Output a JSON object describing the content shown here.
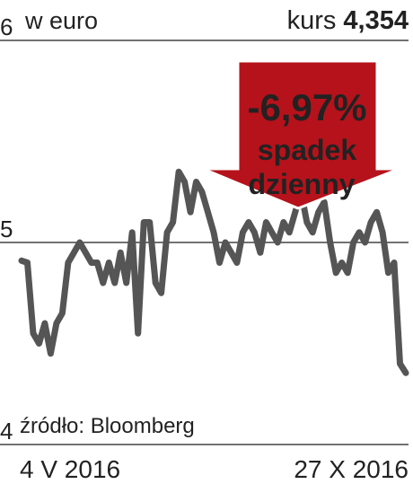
{
  "chart_data": {
    "type": "line",
    "unit_label": "w euro",
    "price_label": "kurs",
    "price_value": "4,354",
    "source": "źródło: Bloomberg",
    "annotation": {
      "change": "-6,97%",
      "line1": "spadek",
      "line2": "dzienny",
      "color": "#b5121b"
    },
    "categories": [
      "4 V 2016",
      null,
      null,
      null,
      null,
      null,
      null,
      null,
      null,
      null,
      null,
      null,
      null,
      null,
      null,
      null,
      null,
      null,
      null,
      null,
      null,
      null,
      null,
      null,
      null,
      null,
      null,
      null,
      null,
      null,
      null,
      null,
      null,
      null,
      null,
      null,
      null,
      null,
      null,
      null,
      null,
      null,
      null,
      null,
      null,
      null,
      null,
      null,
      null,
      null,
      null,
      null,
      null,
      null,
      null,
      null,
      null,
      null,
      null,
      null,
      null,
      null,
      null,
      null,
      null,
      null,
      "27 X 2016"
    ],
    "series": [
      {
        "name": "kurs",
        "color": "#555555",
        "values": [
          4.91,
          4.9,
          4.55,
          4.5,
          4.6,
          4.45,
          4.6,
          4.65,
          4.9,
          4.95,
          5.0,
          4.95,
          4.9,
          4.9,
          4.8,
          4.9,
          4.8,
          4.95,
          4.8,
          5.05,
          4.55,
          5.1,
          5.1,
          4.8,
          4.75,
          5.05,
          5.1,
          5.35,
          5.3,
          5.15,
          5.3,
          5.25,
          5.15,
          5.05,
          4.9,
          5.0,
          4.95,
          4.9,
          5.05,
          5.1,
          5.05,
          4.95,
          5.1,
          5.05,
          5.0,
          5.1,
          5.05,
          5.15,
          5.25,
          5.1,
          5.05,
          5.15,
          5.2,
          5.0,
          4.85,
          4.9,
          4.85,
          5.0,
          5.05,
          5.0,
          5.1,
          5.15,
          5.05,
          4.85,
          4.9,
          4.4,
          4.354
        ]
      }
    ],
    "ylim": [
      4,
      6
    ],
    "yticks": [
      4,
      5,
      6
    ],
    "grid": true
  }
}
